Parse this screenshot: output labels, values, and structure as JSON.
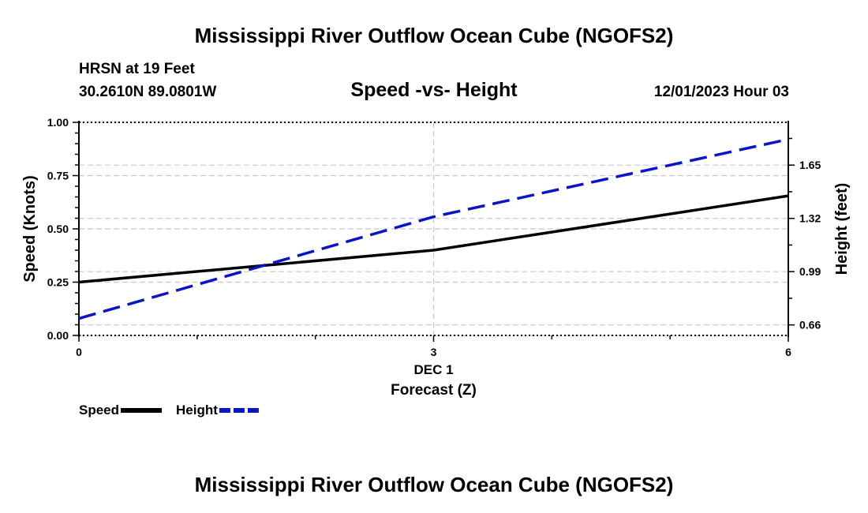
{
  "page": {
    "title_top": "Mississippi River Outflow Ocean Cube (NGOFS2)",
    "title_bottom": "Mississippi River Outflow Ocean Cube (NGOFS2)",
    "station": "HRSN at 19 Feet",
    "coords": "30.2610N  89.0801W",
    "subtitle": "Speed -vs- Height",
    "datetime": "12/01/2023 Hour 03"
  },
  "chart_data": {
    "type": "line",
    "title": "Speed -vs- Height",
    "xlabel": "Forecast (Z)",
    "xlabel_date": "DEC 1",
    "x_ticks": [
      0,
      3,
      6
    ],
    "xlim": [
      0,
      6
    ],
    "ylabel_left": "Speed (Knots)",
    "ylim_left": [
      0,
      1
    ],
    "y_ticks_left": [
      "0.00",
      "0.25",
      "0.50",
      "0.75",
      "1.00"
    ],
    "ylabel_right": "Height (feet)",
    "ylim_right": [
      0.595,
      1.915
    ],
    "y_ticks_right": [
      "0.66",
      "0.99",
      "1.32",
      "1.65"
    ],
    "series": [
      {
        "name": "Speed",
        "axis": "left",
        "color": "#000000",
        "style": "solid",
        "x": [
          0,
          3,
          6
        ],
        "values": [
          0.25,
          0.4,
          0.655
        ]
      },
      {
        "name": "Height",
        "axis": "right",
        "color": "#0a14c8",
        "style": "dashed",
        "x": [
          0,
          3,
          6
        ],
        "values": [
          0.7,
          1.33,
          1.81
        ]
      }
    ],
    "legend": [
      "Speed",
      "Height"
    ],
    "grid": true
  }
}
